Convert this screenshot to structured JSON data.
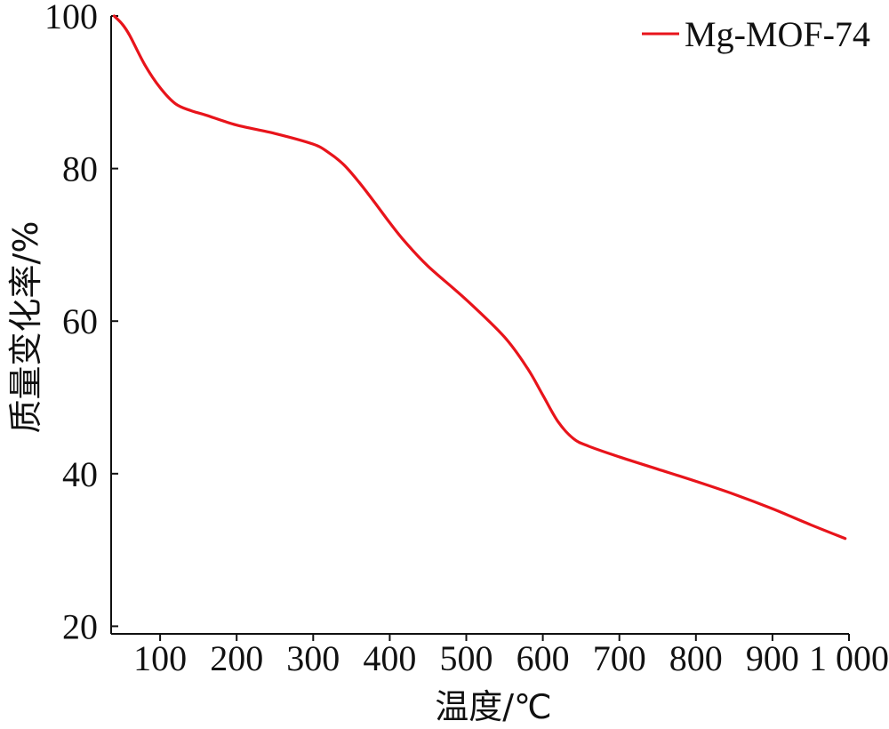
{
  "chart_data": {
    "type": "line",
    "xlabel": "温度/℃",
    "ylabel": "质量变化率/%",
    "xlim": [
      36,
      1000
    ],
    "ylim": [
      19,
      100
    ],
    "x_ticks": [
      100,
      200,
      300,
      400,
      500,
      600,
      700,
      800,
      900,
      1000
    ],
    "x_tick_labels": [
      "100",
      "200",
      "300",
      "400",
      "500",
      "600",
      "700",
      "800",
      "900",
      "1 000"
    ],
    "y_ticks": [
      20,
      40,
      60,
      80,
      100
    ],
    "y_tick_labels": [
      "20",
      "40",
      "60",
      "80",
      "100"
    ],
    "grid": false,
    "legend": "top-right",
    "series": [
      {
        "name": "Mg-MOF-74",
        "color": "#e8141b",
        "x": [
          40,
          50,
          60,
          80,
          100,
          120,
          140,
          160,
          200,
          250,
          300,
          320,
          340,
          360,
          380,
          400,
          420,
          450,
          500,
          550,
          580,
          600,
          620,
          640,
          660,
          700,
          750,
          800,
          850,
          900,
          950,
          995
        ],
        "y": [
          100,
          99,
          97.5,
          93.6,
          90.6,
          88.5,
          87.6,
          87.0,
          85.7,
          84.6,
          83.2,
          82.1,
          80.5,
          78.2,
          75.6,
          72.9,
          70.4,
          67.2,
          62.8,
          57.9,
          53.8,
          50.3,
          46.8,
          44.6,
          43.6,
          42.2,
          40.6,
          39.0,
          37.3,
          35.4,
          33.3,
          31.5
        ]
      }
    ]
  }
}
